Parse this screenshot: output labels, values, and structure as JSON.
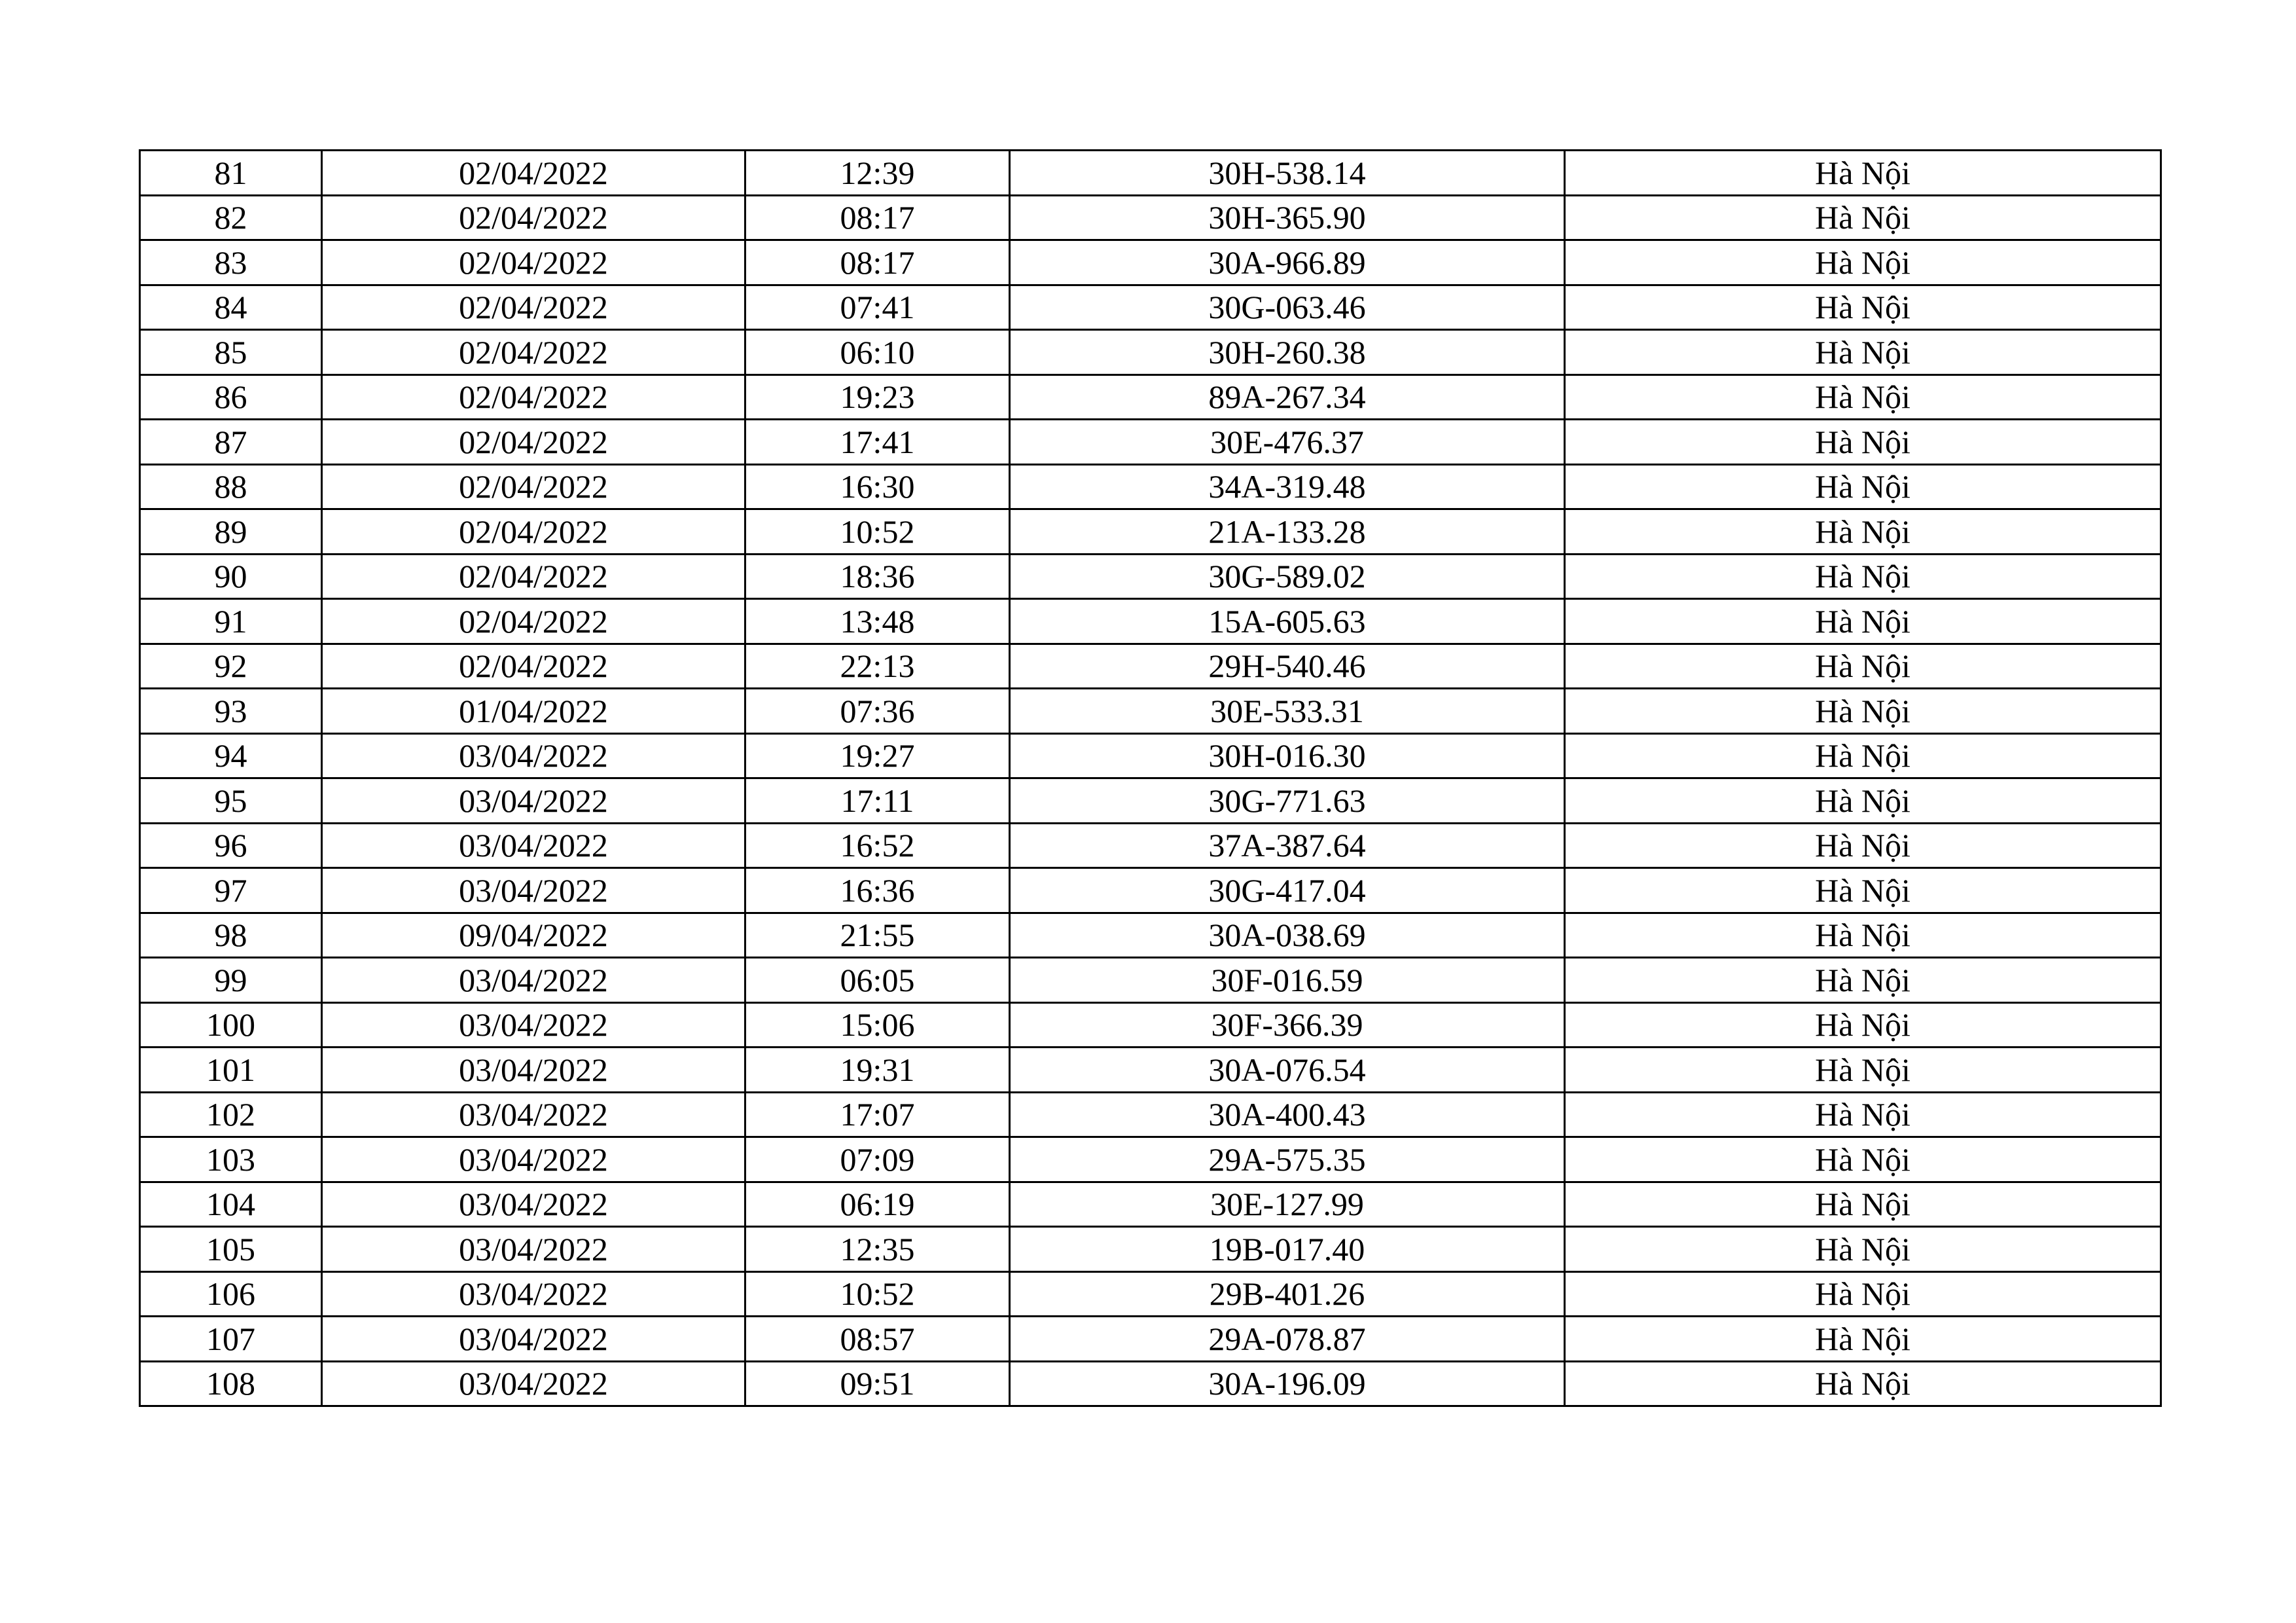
{
  "rows": [
    {
      "no": "81",
      "date": "02/04/2022",
      "time": "12:39",
      "plate": "30H-538.14",
      "place": "Hà Nội"
    },
    {
      "no": "82",
      "date": "02/04/2022",
      "time": "08:17",
      "plate": "30H-365.90",
      "place": "Hà Nội"
    },
    {
      "no": "83",
      "date": "02/04/2022",
      "time": "08:17",
      "plate": "30A-966.89",
      "place": "Hà Nội"
    },
    {
      "no": "84",
      "date": "02/04/2022",
      "time": "07:41",
      "plate": "30G-063.46",
      "place": "Hà Nội"
    },
    {
      "no": "85",
      "date": "02/04/2022",
      "time": "06:10",
      "plate": "30H-260.38",
      "place": "Hà Nội"
    },
    {
      "no": "86",
      "date": "02/04/2022",
      "time": "19:23",
      "plate": "89A-267.34",
      "place": "Hà Nội"
    },
    {
      "no": "87",
      "date": "02/04/2022",
      "time": "17:41",
      "plate": "30E-476.37",
      "place": "Hà Nội"
    },
    {
      "no": "88",
      "date": "02/04/2022",
      "time": "16:30",
      "plate": "34A-319.48",
      "place": "Hà Nội"
    },
    {
      "no": "89",
      "date": "02/04/2022",
      "time": "10:52",
      "plate": "21A-133.28",
      "place": "Hà Nội"
    },
    {
      "no": "90",
      "date": "02/04/2022",
      "time": "18:36",
      "plate": "30G-589.02",
      "place": "Hà Nội"
    },
    {
      "no": "91",
      "date": "02/04/2022",
      "time": "13:48",
      "plate": "15A-605.63",
      "place": "Hà Nội"
    },
    {
      "no": "92",
      "date": "02/04/2022",
      "time": "22:13",
      "plate": "29H-540.46",
      "place": "Hà Nội"
    },
    {
      "no": "93",
      "date": "01/04/2022",
      "time": "07:36",
      "plate": "30E-533.31",
      "place": "Hà Nội"
    },
    {
      "no": "94",
      "date": "03/04/2022",
      "time": "19:27",
      "plate": "30H-016.30",
      "place": "Hà Nội"
    },
    {
      "no": "95",
      "date": "03/04/2022",
      "time": "17:11",
      "plate": "30G-771.63",
      "place": "Hà Nội"
    },
    {
      "no": "96",
      "date": "03/04/2022",
      "time": "16:52",
      "plate": "37A-387.64",
      "place": "Hà Nội"
    },
    {
      "no": "97",
      "date": "03/04/2022",
      "time": "16:36",
      "plate": "30G-417.04",
      "place": "Hà Nội"
    },
    {
      "no": "98",
      "date": "09/04/2022",
      "time": "21:55",
      "plate": "30A-038.69",
      "place": "Hà Nội"
    },
    {
      "no": "99",
      "date": "03/04/2022",
      "time": "06:05",
      "plate": "30F-016.59",
      "place": "Hà Nội"
    },
    {
      "no": "100",
      "date": "03/04/2022",
      "time": "15:06",
      "plate": "30F-366.39",
      "place": "Hà Nội"
    },
    {
      "no": "101",
      "date": "03/04/2022",
      "time": "19:31",
      "plate": "30A-076.54",
      "place": "Hà Nội"
    },
    {
      "no": "102",
      "date": "03/04/2022",
      "time": "17:07",
      "plate": "30A-400.43",
      "place": "Hà Nội"
    },
    {
      "no": "103",
      "date": "03/04/2022",
      "time": "07:09",
      "plate": "29A-575.35",
      "place": "Hà Nội"
    },
    {
      "no": "104",
      "date": "03/04/2022",
      "time": "06:19",
      "plate": "30E-127.99",
      "place": "Hà Nội"
    },
    {
      "no": "105",
      "date": "03/04/2022",
      "time": "12:35",
      "plate": "19B-017.40",
      "place": "Hà Nội"
    },
    {
      "no": "106",
      "date": "03/04/2022",
      "time": "10:52",
      "plate": "29B-401.26",
      "place": "Hà Nội"
    },
    {
      "no": "107",
      "date": "03/04/2022",
      "time": "08:57",
      "plate": "29A-078.87",
      "place": "Hà Nội"
    },
    {
      "no": "108",
      "date": "03/04/2022",
      "time": "09:51",
      "plate": "30A-196.09",
      "place": "Hà Nội"
    }
  ]
}
